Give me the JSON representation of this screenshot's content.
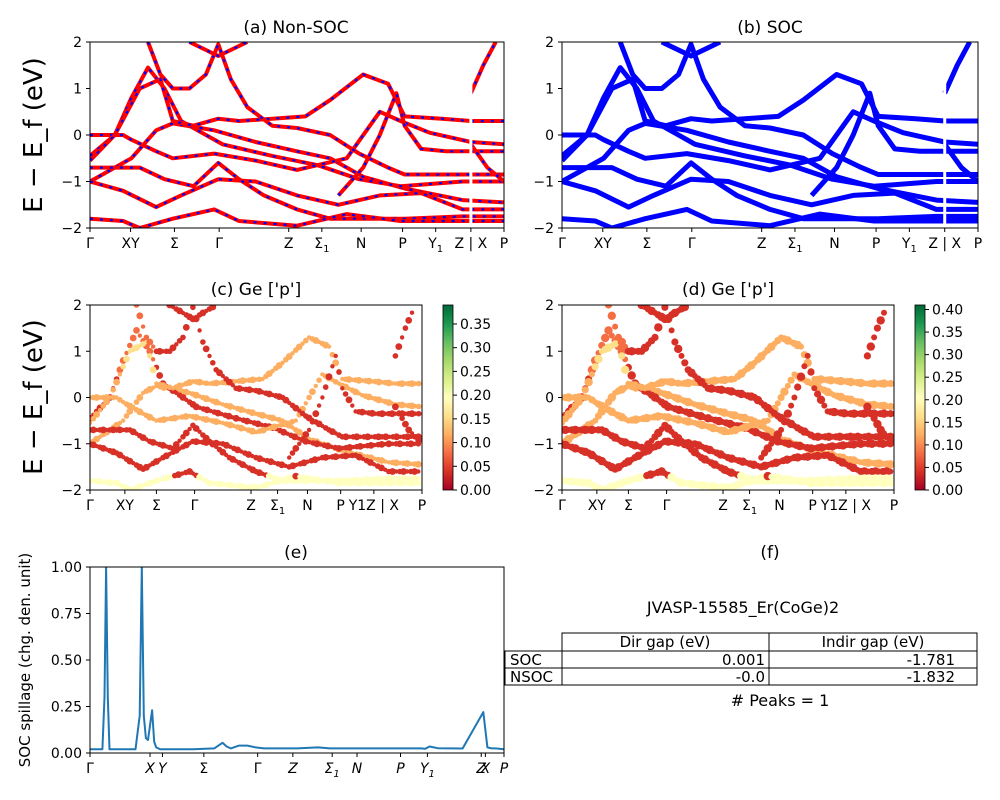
{
  "figure": {
    "ylabel_band": "E − E_f (eV)",
    "ylabel_spillage": "SOC spillage (chg. den. unit)"
  },
  "chart_data": [
    {
      "type": "line",
      "title": "(a) Non-SOC",
      "ylim": [
        -2,
        2
      ],
      "yticks": [
        "2",
        "1",
        "0",
        "−1",
        "−2"
      ],
      "kpath_labels": [
        "Γ",
        "XY",
        "Σ",
        "Γ",
        "Z",
        "Σ1",
        "N",
        "P",
        "Y1",
        "Z | X",
        "P"
      ],
      "kpath_positions": [
        0,
        0.098,
        0.204,
        0.312,
        0.48,
        0.56,
        0.655,
        0.755,
        0.835,
        0.92,
        1
      ],
      "series": [
        {
          "color": "#ff0000",
          "dash": true,
          "overlay": "#0000ff",
          "bands": [
            [
              [
                0,
                -1.0
              ],
              [
                0.1,
                -0.5
              ],
              [
                0.16,
                0.1
              ],
              [
                0.2,
                0.25
              ],
              [
                0.3,
                0.1
              ],
              [
                0.4,
                -0.15
              ],
              [
                0.5,
                -0.35
              ],
              [
                0.58,
                -0.5
              ],
              [
                0.66,
                -0.9
              ],
              [
                0.76,
                -1.15
              ],
              [
                0.9,
                -1.4
              ],
              [
                1,
                -1.45
              ]
            ],
            [
              [
                0,
                -1.0
              ],
              [
                0.08,
                -1.2
              ],
              [
                0.16,
                -1.55
              ],
              [
                0.22,
                -1.3
              ],
              [
                0.31,
                -0.95
              ],
              [
                0.4,
                -1.0
              ],
              [
                0.5,
                -1.3
              ],
              [
                0.6,
                -1.5
              ],
              [
                0.7,
                -1.3
              ],
              [
                0.8,
                -1.25
              ],
              [
                0.9,
                -1.6
              ],
              [
                1,
                -1.6
              ]
            ],
            [
              [
                0,
                -0.45
              ],
              [
                0.06,
                0.0
              ],
              [
                0.1,
                0.8
              ],
              [
                0.14,
                1.45
              ],
              [
                0.18,
                1.0
              ],
              [
                0.22,
                0.3
              ],
              [
                0.28,
                0.0
              ],
              [
                0.32,
                -0.2
              ],
              [
                0.44,
                -0.45
              ],
              [
                0.55,
                -0.65
              ],
              [
                0.65,
                -0.95
              ],
              [
                0.75,
                -1.1
              ],
              [
                0.9,
                -1.0
              ],
              [
                1,
                -1.0
              ]
            ],
            [
              [
                0,
                0.0
              ],
              [
                0.08,
                0.0
              ],
              [
                0.1,
                -0.1
              ],
              [
                0.16,
                -0.35
              ],
              [
                0.2,
                -0.5
              ],
              [
                0.3,
                -0.4
              ],
              [
                0.4,
                -0.55
              ],
              [
                0.5,
                -0.75
              ],
              [
                0.62,
                -0.5
              ],
              [
                0.7,
                0.5
              ],
              [
                0.75,
                0.3
              ],
              [
                0.82,
                0.05
              ],
              [
                0.92,
                -0.15
              ],
              [
                1,
                -0.2
              ]
            ],
            [
              [
                0,
                -0.7
              ],
              [
                0.08,
                -0.7
              ],
              [
                0.12,
                -0.7
              ],
              [
                0.18,
                -0.95
              ],
              [
                0.25,
                -1.1
              ],
              [
                0.31,
                -0.6
              ],
              [
                0.36,
                -0.95
              ],
              [
                0.42,
                -1.3
              ],
              [
                0.5,
                -1.6
              ],
              [
                0.58,
                -1.8
              ],
              [
                0.68,
                -1.8
              ],
              [
                0.76,
                -1.8
              ],
              [
                0.9,
                -1.75
              ],
              [
                1,
                -1.75
              ]
            ],
            [
              [
                0,
                -1.8
              ],
              [
                0.08,
                -1.85
              ],
              [
                0.12,
                -2.0
              ],
              [
                0.2,
                -1.8
              ],
              [
                0.3,
                -1.6
              ],
              [
                0.36,
                -1.85
              ],
              [
                0.5,
                -1.95
              ],
              [
                0.62,
                -1.7
              ],
              [
                0.75,
                -1.85
              ],
              [
                1,
                -1.85
              ]
            ],
            [
              [
                0,
                -0.55
              ],
              [
                0.06,
                0.0
              ],
              [
                0.12,
                1.0
              ],
              [
                0.17,
                1.2
              ],
              [
                0.2,
                0.3
              ],
              [
                0.25,
                0.2
              ],
              [
                0.31,
                0.35
              ],
              [
                0.36,
                0.3
              ],
              [
                0.44,
                0.35
              ],
              [
                0.52,
                0.4
              ],
              [
                0.58,
                0.75
              ],
              [
                0.66,
                1.3
              ],
              [
                0.72,
                1.1
              ],
              [
                0.76,
                0.4
              ],
              [
                0.85,
                0.35
              ],
              [
                0.92,
                0.3
              ],
              [
                1,
                0.3
              ]
            ],
            [
              [
                0.14,
                2.0
              ],
              [
                0.17,
                1.3
              ],
              [
                0.2,
                1.0
              ],
              [
                0.24,
                1.0
              ],
              [
                0.28,
                1.3
              ],
              [
                0.31,
                1.95
              ],
              [
                0.34,
                1.2
              ],
              [
                0.38,
                0.6
              ],
              [
                0.44,
                0.2
              ],
              [
                0.5,
                0.15
              ],
              [
                0.58,
                0.0
              ],
              [
                0.65,
                -0.4
              ],
              [
                0.72,
                -0.7
              ],
              [
                0.76,
                -0.85
              ],
              [
                0.88,
                -0.85
              ],
              [
                1,
                -0.85
              ]
            ],
            [
              [
                0.24,
                2.0
              ],
              [
                0.31,
                1.7
              ],
              [
                0.38,
                2.0
              ]
            ],
            [
              [
                0.6,
                -1.3
              ],
              [
                0.66,
                -0.7
              ],
              [
                0.7,
                0.0
              ],
              [
                0.74,
                0.9
              ],
              [
                0.76,
                0.2
              ],
              [
                0.8,
                -0.3
              ],
              [
                0.86,
                -0.35
              ],
              [
                0.92,
                -0.35
              ],
              [
                1,
                -0.35
              ]
            ],
            [
              [
                0.92,
                0.9
              ],
              [
                0.95,
                1.5
              ],
              [
                0.98,
                2.0
              ]
            ],
            [
              [
                0.92,
                -0.2
              ],
              [
                0.96,
                -0.7
              ],
              [
                1,
                -1.0
              ]
            ]
          ]
        }
      ]
    },
    {
      "type": "line",
      "title": "(b) SOC",
      "ylim": [
        -2,
        2
      ],
      "yticks": [
        "2",
        "1",
        "0",
        "−1",
        "−2"
      ],
      "kpath_labels": [
        "Γ",
        "XY",
        "Σ",
        "Γ",
        "Z",
        "Σ1",
        "N",
        "P",
        "Y1",
        "Z | X",
        "P"
      ],
      "kpath_positions": [
        0,
        0.098,
        0.204,
        0.312,
        0.48,
        0.56,
        0.655,
        0.755,
        0.835,
        0.92,
        1
      ],
      "series": [
        {
          "color": "#0000ff"
        }
      ]
    },
    {
      "type": "scatter",
      "title": "(c)  Ge ['p']",
      "ylim": [
        -2,
        2
      ],
      "yticks": [
        "2",
        "1",
        "0",
        "−1",
        "−2"
      ],
      "kpath_labels": [
        "Γ",
        "XY",
        "Σ",
        "Γ",
        "Z",
        "Σ1",
        "N",
        "P",
        "Y1Z | X",
        "P"
      ],
      "colorbar": {
        "cmap": "RdYlGn",
        "min": 0.0,
        "max": 0.39,
        "ticks": [
          "0.35",
          "0.30",
          "0.25",
          "0.20",
          "0.15",
          "0.10",
          "0.05",
          "0.00"
        ]
      }
    },
    {
      "type": "scatter",
      "title": "(d) Ge ['p']",
      "ylim": [
        -2,
        2
      ],
      "yticks": [
        "2",
        "1",
        "0",
        "−1",
        "−2"
      ],
      "kpath_labels": [
        "Γ",
        "XY",
        "Σ",
        "Γ",
        "Z",
        "Σ1",
        "N",
        "P",
        "Y1Z | X",
        "P"
      ],
      "colorbar": {
        "cmap": "RdYlGn",
        "min": 0.0,
        "max": 0.41,
        "ticks": [
          "0.40",
          "0.35",
          "0.30",
          "0.25",
          "0.20",
          "0.15",
          "0.10",
          "0.05",
          "0.00"
        ]
      }
    },
    {
      "type": "line",
      "title": "(e)",
      "ylabel": "SOC spillage (chg. den. unit)",
      "ylim": [
        0,
        1.0
      ],
      "yticks": [
        "1.00",
        "0.75",
        "0.50",
        "0.25",
        "0.00"
      ],
      "xtick_labels": [
        "Γ",
        "X",
        "Y",
        "Σ",
        "Γ",
        "Z",
        "Σ1",
        "N",
        "P",
        "Y1",
        "Z",
        "X",
        "P"
      ],
      "series": [
        {
          "color": "#1f77b4",
          "x": [
            0,
            0.03,
            0.035,
            0.039,
            0.043,
            0.047,
            0.05,
            0.11,
            0.12,
            0.125,
            0.13,
            0.135,
            0.14,
            0.15,
            0.155,
            0.16,
            0.165,
            0.17,
            0.18,
            0.2,
            0.25,
            0.3,
            0.32,
            0.33,
            0.34,
            0.36,
            0.38,
            0.4,
            0.42,
            0.45,
            0.5,
            0.55,
            0.58,
            0.6,
            0.62,
            0.66,
            0.7,
            0.8,
            0.81,
            0.82,
            0.84,
            0.9,
            0.95,
            0.96,
            0.97,
            0.98,
            1.0
          ],
          "y": [
            0.02,
            0.02,
            0.3,
            1.0,
            0.3,
            0.02,
            0.02,
            0.02,
            0.2,
            1.0,
            0.2,
            0.08,
            0.07,
            0.23,
            0.06,
            0.03,
            0.025,
            0.02,
            0.02,
            0.02,
            0.02,
            0.025,
            0.055,
            0.035,
            0.025,
            0.04,
            0.04,
            0.03,
            0.025,
            0.025,
            0.025,
            0.03,
            0.025,
            0.025,
            0.025,
            0.025,
            0.025,
            0.025,
            0.023,
            0.035,
            0.026,
            0.024,
            0.22,
            0.03,
            0.025,
            0.025,
            0.02
          ]
        }
      ]
    },
    {
      "type": "table",
      "title": "(f)",
      "subtitle": "JVASP-15585_Er(CoGe)2",
      "columns": [
        "Dir gap (eV)",
        "Indir gap (eV)"
      ],
      "rows": [
        {
          "label": "SOC",
          "values": [
            "0.001",
            "-1.781"
          ]
        },
        {
          "label": "NSOC",
          "values": [
            "-0.0",
            "-1.832"
          ]
        }
      ],
      "footer": "# Peaks = 1"
    }
  ]
}
